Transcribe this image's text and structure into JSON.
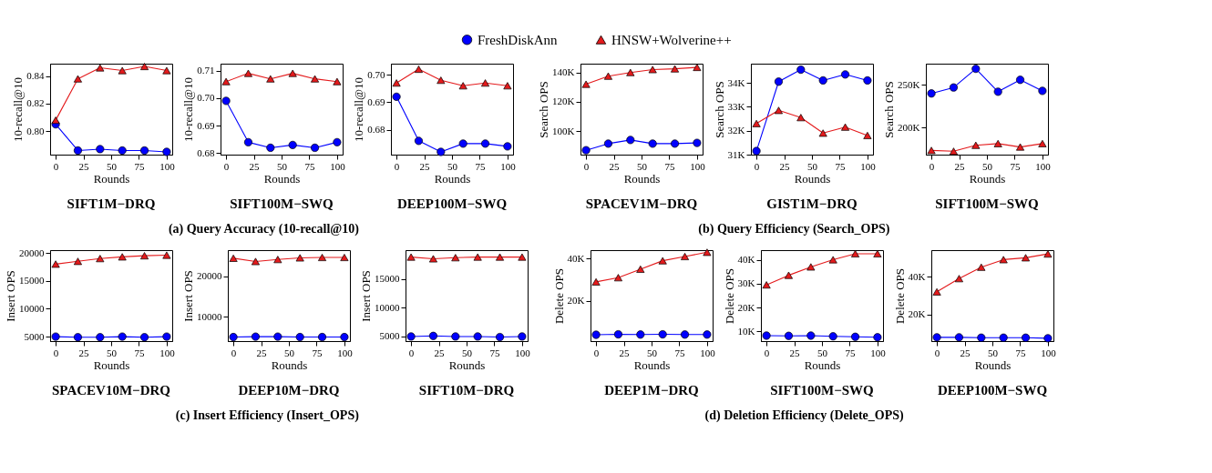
{
  "chart_data": [
    {
      "type": "line",
      "title": "SIFT1M−DRQ",
      "xlabel": "Rounds",
      "ylabel": "10-recall@10",
      "x": [
        0,
        20,
        40,
        60,
        80,
        100
      ],
      "xlim": [
        -5,
        105
      ],
      "xticks": [
        0,
        25,
        50,
        75,
        100
      ],
      "ylim": [
        0.783,
        0.849
      ],
      "yticks": [
        {
          "value": 0.8,
          "label": "0.80"
        },
        0.82,
        0.84
      ],
      "legend": "top",
      "grid": false,
      "series": [
        {
          "name": "FreshDiskAnn",
          "color": "#0000ff",
          "marker": "circle",
          "values": [
            0.805,
            0.786,
            0.787,
            0.786,
            0.786,
            0.785
          ]
        },
        {
          "name": "HNSW+Wolverine++",
          "color": "#e41a1c",
          "marker": "triangle",
          "values": [
            0.808,
            0.838,
            0.846,
            0.844,
            0.847,
            0.844
          ]
        }
      ]
    },
    {
      "type": "line",
      "title": "SIFT100M−SWQ",
      "subtitle": "(a) Query Accuracy (10-recall@10)",
      "xlabel": "Rounds",
      "ylabel": "10-recall@10",
      "x": [
        0,
        20,
        40,
        60,
        80,
        100
      ],
      "xlim": [
        -5,
        105
      ],
      "xticks": [
        0,
        25,
        50,
        75,
        100
      ],
      "ylim": [
        0.6795,
        0.7125
      ],
      "yticks": [
        0.68,
        0.69,
        {
          "value": 0.7,
          "label": "0.70"
        },
        0.71
      ],
      "grid": false,
      "series": [
        {
          "color": "#0000ff",
          "marker": "circle",
          "values": [
            0.699,
            0.684,
            0.682,
            0.683,
            0.682,
            0.684
          ]
        },
        {
          "color": "#e41a1c",
          "marker": "triangle",
          "values": [
            0.706,
            0.709,
            0.707,
            0.709,
            0.707,
            0.706
          ]
        }
      ]
    },
    {
      "type": "line",
      "title": "DEEP100M−SWQ",
      "xlabel": "Rounds",
      "ylabel": "10-recall@10",
      "x": [
        0,
        20,
        40,
        60,
        80,
        100
      ],
      "xlim": [
        -5,
        105
      ],
      "xticks": [
        0,
        25,
        50,
        75,
        100
      ],
      "ylim": [
        0.671,
        0.704
      ],
      "yticks": [
        0.68,
        0.69,
        {
          "value": 0.7,
          "label": "0.70"
        }
      ],
      "grid": false,
      "series": [
        {
          "color": "#0000ff",
          "marker": "circle",
          "values": [
            0.692,
            0.676,
            0.672,
            0.675,
            0.675,
            0.674
          ]
        },
        {
          "color": "#e41a1c",
          "marker": "triangle",
          "values": [
            0.697,
            0.702,
            0.698,
            0.696,
            0.697,
            0.696
          ]
        }
      ]
    },
    {
      "type": "line",
      "title": "SPACEV1M−DRQ",
      "xlabel": "Rounds",
      "ylabel": "Search OPS",
      "x": [
        0,
        20,
        40,
        60,
        80,
        100
      ],
      "xlim": [
        -5,
        105
      ],
      "xticks": [
        0,
        25,
        50,
        75,
        100
      ],
      "ylim": [
        84000,
        146000
      ],
      "yticks": [
        {
          "value": 100000,
          "label": "100K"
        },
        {
          "value": 120000,
          "label": "120K"
        },
        {
          "value": 140000,
          "label": "140K"
        }
      ],
      "grid": false,
      "series": [
        {
          "color": "#0000ff",
          "marker": "circle",
          "values": [
            87000,
            91500,
            94000,
            91500,
            91500,
            92000
          ]
        },
        {
          "color": "#e41a1c",
          "marker": "triangle",
          "values": [
            132000,
            137500,
            140000,
            142000,
            142500,
            143500
          ]
        }
      ]
    },
    {
      "type": "line",
      "title": "GIST1M−DRQ",
      "subtitle": "(b) Query Efficiency (Search_OPS)",
      "xlabel": "Rounds",
      "ylabel": "Search OPS",
      "x": [
        0,
        20,
        40,
        60,
        80,
        100
      ],
      "xlim": [
        -5,
        105
      ],
      "xticks": [
        0,
        25,
        50,
        75,
        100
      ],
      "ylim": [
        31000,
        34800
      ],
      "yticks": [
        {
          "value": 31000,
          "label": "31K"
        },
        {
          "value": 32000,
          "label": "32K"
        },
        {
          "value": 33000,
          "label": "33K"
        },
        {
          "value": 34000,
          "label": "34K"
        }
      ],
      "grid": false,
      "series": [
        {
          "color": "#0000ff",
          "marker": "circle",
          "values": [
            31150,
            34050,
            34550,
            34100,
            34350,
            34100
          ]
        },
        {
          "color": "#e41a1c",
          "marker": "triangle",
          "values": [
            32300,
            32850,
            32550,
            31900,
            32150,
            31800
          ]
        }
      ]
    },
    {
      "type": "line",
      "title": "SIFT100M−SWQ",
      "xlabel": "Rounds",
      "ylabel": "Search OPS",
      "x": [
        0,
        20,
        40,
        60,
        80,
        100
      ],
      "xlim": [
        -5,
        105
      ],
      "xticks": [
        0,
        25,
        50,
        75,
        100
      ],
      "ylim": [
        168000,
        275000
      ],
      "yticks": [
        {
          "value": 200000,
          "label": "200K"
        },
        {
          "value": 250000,
          "label": "250K"
        }
      ],
      "grid": false,
      "series": [
        {
          "color": "#0000ff",
          "marker": "circle",
          "values": [
            240000,
            247000,
            269000,
            242000,
            256000,
            243000
          ]
        },
        {
          "color": "#e41a1c",
          "marker": "triangle",
          "values": [
            173000,
            172000,
            179000,
            181000,
            177000,
            181000
          ]
        }
      ]
    },
    {
      "type": "line",
      "title": "SPACEV10M−DRQ",
      "xlabel": "Rounds",
      "ylabel": "Insert OPS",
      "x": [
        0,
        20,
        40,
        60,
        80,
        100
      ],
      "xlim": [
        -5,
        105
      ],
      "xticks": [
        0,
        25,
        50,
        75,
        100
      ],
      "ylim": [
        4200,
        20500
      ],
      "yticks": [
        5000,
        10000,
        15000,
        20000
      ],
      "grid": false,
      "series": [
        {
          "color": "#0000ff",
          "marker": "circle",
          "values": [
            5000,
            4900,
            4900,
            5000,
            4900,
            5000
          ]
        },
        {
          "color": "#e41a1c",
          "marker": "triangle",
          "values": [
            18000,
            18500,
            19000,
            19300,
            19500,
            19600
          ]
        }
      ]
    },
    {
      "type": "line",
      "title": "DEEP10M−DRQ",
      "subtitle": "(c) Insert Efficiency (Insert_OPS)",
      "xlabel": "Rounds",
      "ylabel": "Insert OPS",
      "x": [
        0,
        20,
        40,
        60,
        80,
        100
      ],
      "xlim": [
        -5,
        105
      ],
      "xticks": [
        0,
        25,
        50,
        75,
        100
      ],
      "ylim": [
        4000,
        26500
      ],
      "yticks": [
        10000,
        20000
      ],
      "grid": false,
      "series": [
        {
          "color": "#0000ff",
          "marker": "circle",
          "values": [
            5000,
            5100,
            5100,
            5000,
            5000,
            5000
          ]
        },
        {
          "color": "#e41a1c",
          "marker": "triangle",
          "values": [
            24500,
            23700,
            24200,
            24600,
            24700,
            24700
          ]
        }
      ]
    },
    {
      "type": "line",
      "title": "SIFT10M−DRQ",
      "xlabel": "Rounds",
      "ylabel": "Insert OPS",
      "x": [
        0,
        20,
        40,
        60,
        80,
        100
      ],
      "xlim": [
        -5,
        105
      ],
      "xticks": [
        0,
        25,
        50,
        75,
        100
      ],
      "ylim": [
        4200,
        20000
      ],
      "yticks": [
        5000,
        10000,
        15000
      ],
      "grid": false,
      "series": [
        {
          "color": "#0000ff",
          "marker": "circle",
          "values": [
            5000,
            5100,
            5000,
            5000,
            4900,
            5000
          ]
        },
        {
          "color": "#e41a1c",
          "marker": "triangle",
          "values": [
            18800,
            18500,
            18700,
            18800,
            18800,
            18800
          ]
        }
      ]
    },
    {
      "type": "line",
      "title": "DEEP1M−DRQ",
      "xlabel": "Rounds",
      "ylabel": "Delete OPS",
      "x": [
        0,
        20,
        40,
        60,
        80,
        100
      ],
      "xlim": [
        -5,
        105
      ],
      "xticks": [
        0,
        25,
        50,
        75,
        100
      ],
      "ylim": [
        1000,
        44000
      ],
      "yticks": [
        {
          "value": 20000,
          "label": "20K"
        },
        {
          "value": 40000,
          "label": "40K"
        }
      ],
      "grid": false,
      "series": [
        {
          "color": "#0000ff",
          "marker": "circle",
          "values": [
            4000,
            4200,
            4100,
            4200,
            4100,
            4100
          ]
        },
        {
          "color": "#e41a1c",
          "marker": "triangle",
          "values": [
            29000,
            31000,
            35000,
            39000,
            41000,
            43000
          ]
        }
      ]
    },
    {
      "type": "line",
      "title": "SIFT100M−SWQ",
      "subtitle": "(d) Deletion Efficiency (Delete_OPS)",
      "xlabel": "Rounds",
      "ylabel": "Delete OPS",
      "x": [
        0,
        20,
        40,
        60,
        80,
        100
      ],
      "xlim": [
        -5,
        105
      ],
      "xticks": [
        0,
        25,
        50,
        75,
        100
      ],
      "ylim": [
        6000,
        44000
      ],
      "yticks": [
        {
          "value": 10000,
          "label": "10K"
        },
        {
          "value": 20000,
          "label": "20K"
        },
        {
          "value": 30000,
          "label": "30K"
        },
        {
          "value": 40000,
          "label": "40K"
        }
      ],
      "grid": false,
      "series": [
        {
          "color": "#0000ff",
          "marker": "circle",
          "values": [
            8300,
            8200,
            8300,
            8000,
            7800,
            7600
          ]
        },
        {
          "color": "#e41a1c",
          "marker": "triangle",
          "values": [
            29500,
            33500,
            37000,
            40000,
            42500,
            42500
          ]
        }
      ]
    },
    {
      "type": "line",
      "title": "DEEP100M−SWQ",
      "xlabel": "Rounds",
      "ylabel": "Delete OPS",
      "x": [
        0,
        20,
        40,
        60,
        80,
        100
      ],
      "xlim": [
        -5,
        105
      ],
      "xticks": [
        0,
        25,
        50,
        75,
        100
      ],
      "ylim": [
        6000,
        54000
      ],
      "yticks": [
        {
          "value": 20000,
          "label": "20K"
        },
        {
          "value": 40000,
          "label": "40K"
        }
      ],
      "grid": false,
      "series": [
        {
          "color": "#0000ff",
          "marker": "circle",
          "values": [
            8000,
            8000,
            7800,
            7800,
            7800,
            7500
          ]
        },
        {
          "color": "#e41a1c",
          "marker": "triangle",
          "values": [
            32000,
            39000,
            45000,
            49000,
            50000,
            52000
          ]
        }
      ]
    }
  ]
}
